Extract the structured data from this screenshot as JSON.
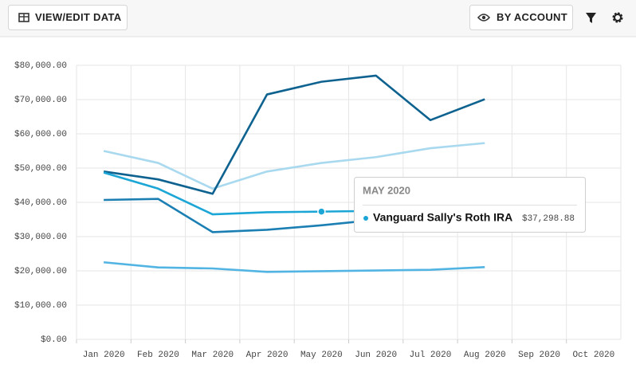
{
  "toolbar": {
    "left_button": "VIEW/EDIT DATA",
    "right_button": "BY ACCOUNT"
  },
  "chart_data": {
    "type": "line",
    "categories": [
      "Jan 2020",
      "Feb 2020",
      "Mar 2020",
      "Apr 2020",
      "May 2020",
      "Jun 2020",
      "Jul 2020",
      "Aug 2020",
      "Sep 2020",
      "Oct 2020"
    ],
    "ylim": [
      0,
      80000
    ],
    "yticks": [
      {
        "value": 0,
        "label": "$0.00"
      },
      {
        "value": 10000,
        "label": "$10,000.00"
      },
      {
        "value": 20000,
        "label": "$20,000.00"
      },
      {
        "value": 30000,
        "label": "$30,000.00"
      },
      {
        "value": 40000,
        "label": "$40,000.00"
      },
      {
        "value": 50000,
        "label": "$50,000.00"
      },
      {
        "value": 60000,
        "label": "$60,000.00"
      },
      {
        "value": 70000,
        "label": "$70,000.00"
      },
      {
        "value": 80000,
        "label": "$80,000.00"
      }
    ],
    "grid": true,
    "series": [
      {
        "color": "#a9d9ef",
        "values": [
          55000,
          51500,
          44000,
          49000,
          51500,
          53200,
          55800,
          57300,
          null,
          null
        ]
      },
      {
        "color": "#0e628f",
        "values": [
          49000,
          46700,
          42500,
          71500,
          75200,
          77000,
          64000,
          70100,
          null,
          null
        ]
      },
      {
        "name": "Vanguard Sally's Roth IRA",
        "color": "#1ba6d6",
        "values": [
          48700,
          44000,
          36500,
          37100,
          37298.88,
          37500,
          37800,
          38000,
          null,
          null
        ]
      },
      {
        "color": "#1b7fb3",
        "values": [
          40700,
          41000,
          31300,
          32000,
          33300,
          34900,
          36000,
          37000,
          null,
          null
        ]
      },
      {
        "color": "#52b4e3",
        "values": [
          22500,
          21000,
          20700,
          19700,
          19900,
          20100,
          20300,
          21100,
          null,
          null
        ]
      }
    ],
    "tooltip": {
      "title": "MAY 2020",
      "series": 2,
      "index": 4,
      "label": "$37,298.88"
    }
  }
}
